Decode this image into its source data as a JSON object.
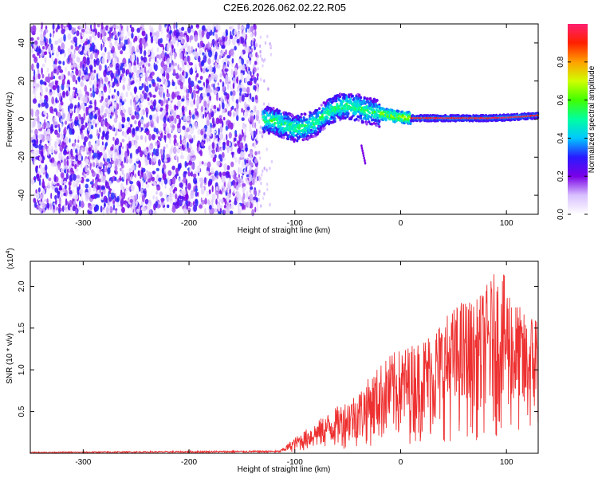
{
  "title": "C2E6.2026.062.02.22.R05",
  "chart_data": [
    {
      "type": "heatmap",
      "title": "C2E6.2026.062.02.22.R05",
      "xlabel": "Height of straight line (km)",
      "ylabel": "Frequency (Hz)",
      "xlim": [
        -350,
        130
      ],
      "ylim": [
        -50,
        50
      ],
      "xticks": [
        -300,
        -200,
        -100,
        0,
        100
      ],
      "yticks": [
        -40,
        -20,
        0,
        20,
        40
      ],
      "noise_region": [
        -350,
        -135
      ],
      "signal_trace": {
        "x": [
          -130,
          -120,
          -110,
          -100,
          -90,
          -80,
          -70,
          -60,
          -50,
          -40,
          -30,
          -20,
          -10,
          0,
          10,
          20,
          40,
          60,
          80,
          100,
          120,
          130
        ],
        "freq": [
          0,
          -1,
          -3,
          -5,
          -4,
          -2,
          3,
          6,
          7,
          6,
          4,
          3,
          2,
          1,
          0.5,
          0.5,
          0.5,
          0.5,
          0.5,
          0.8,
          1.5,
          2
        ]
      },
      "colorbar": {
        "label": "Normalized spectral amplitude",
        "range": [
          0,
          1
        ],
        "ticks": [
          "0.0",
          "0.2",
          "0.4",
          "0.6",
          "0.8"
        ],
        "colors": [
          "#ffffff",
          "#d8c0ff",
          "#7a00e6",
          "#2a1aff",
          "#00c8ff",
          "#00ffa0",
          "#40ff00",
          "#d0ff00",
          "#ffa000",
          "#ff2000",
          "#ff2070"
        ]
      }
    },
    {
      "type": "line",
      "xlabel": "Height of straight line (km)",
      "ylabel": "SNR (10 * v/v)",
      "multiplier": "(x10",
      "multiplier_exp": "4",
      "multiplier_close": ")",
      "xlim": [
        -350,
        130
      ],
      "ylim": [
        0,
        2.3
      ],
      "xticks": [
        -300,
        -200,
        -100,
        0,
        100
      ],
      "yticks": [
        "0.5",
        "1.0",
        "1.5",
        "2.0"
      ],
      "color": "#ee3030",
      "envelope": {
        "x": [
          -350,
          -115,
          -100,
          -80,
          -60,
          -40,
          -20,
          -10,
          0,
          10,
          20,
          35,
          50,
          60,
          70,
          80,
          90,
          100,
          110,
          120,
          130
        ],
        "y": [
          0.01,
          0.02,
          0.15,
          0.3,
          0.45,
          0.6,
          0.85,
          0.95,
          1.0,
          1.05,
          1.1,
          1.25,
          1.4,
          1.5,
          1.45,
          1.6,
          1.75,
          1.7,
          1.45,
          1.3,
          1.45
        ]
      }
    }
  ]
}
